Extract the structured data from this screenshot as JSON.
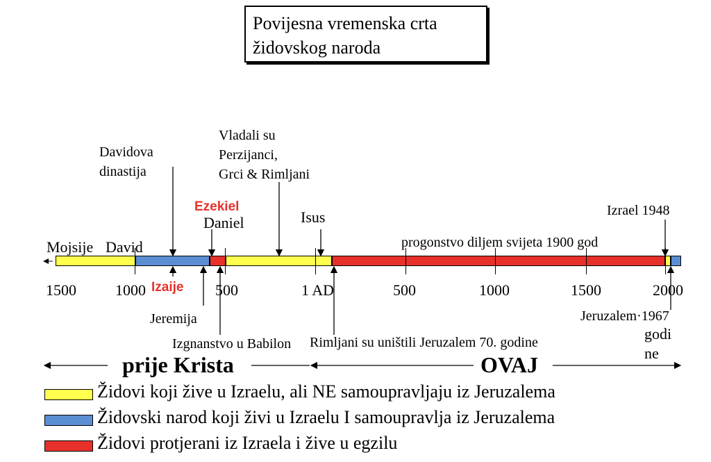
{
  "title": {
    "line1": "Povijesna vremenska crta",
    "line2": "židovskog naroda"
  },
  "colors": {
    "yellow": "#ffff4d",
    "blue": "#5b8ed2",
    "red": "#e8302a",
    "accent_text": "#e8302a"
  },
  "timeline": {
    "segments": [
      {
        "type": "yellow"
      },
      {
        "type": "blue"
      },
      {
        "type": "red"
      },
      {
        "type": "yellow"
      },
      {
        "type": "red"
      },
      {
        "type": "yellow"
      },
      {
        "type": "blue"
      }
    ],
    "ticks": [
      "1500",
      "1000",
      "500",
      "1 AD",
      "500",
      "1000",
      "1500",
      "2000"
    ]
  },
  "labels": {
    "mojsije": "Mojsije",
    "david": "David",
    "davidova_line1": "Davidova",
    "davidova_line2": "dinastija",
    "ezekiel": "Ezekiel",
    "daniel": "Daniel",
    "vladali_line1": "Vladali su",
    "vladali_line2": "Perzijanci,",
    "vladali_line3": "Grci & Rimljani",
    "isus": "Isus",
    "progonstvo": "progonstvo diljem svijeta 1900 god",
    "izrael1948": "Izrael 1948",
    "izaije": "Izaije",
    "jeremija": "Jeremija",
    "izgnanstvo": "Izgnanstvo u Babilon",
    "rimljani": "Rimljani su uništili Jeruzalem 70. godine",
    "jeruzalem1967": "Jeruzalem·1967",
    "godi": "godi",
    "ne": "ne"
  },
  "era": {
    "before": "prije Krista",
    "after": "OVAJ"
  },
  "legend": [
    {
      "color": "yellow",
      "text": "Židovi koji žive u Izraelu, ali NE samoupravljaju iz Jeruzalema"
    },
    {
      "color": "blue",
      "text": "Židovski narod koji živi u Izraelu I samoupravlja iz Jeruzalema"
    },
    {
      "color": "red",
      "text": "Židovi protjerani iz Izraela i žive u egzilu"
    }
  ]
}
